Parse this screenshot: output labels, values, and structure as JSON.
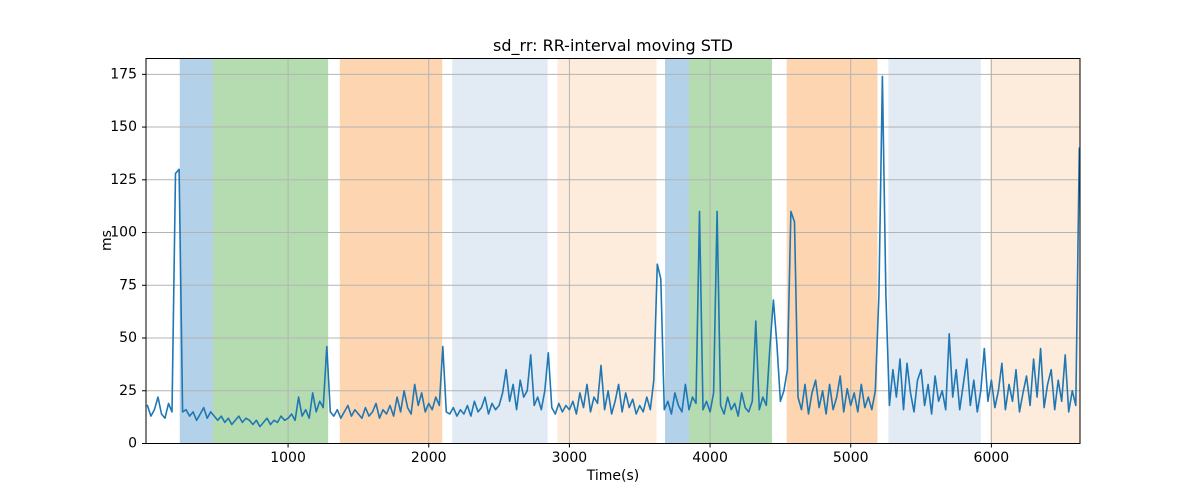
{
  "figure": {
    "title": "sd_rr: RR-interval moving STD",
    "xlabel": "Time(s)",
    "ylabel": "ms"
  },
  "chart_data": {
    "type": "line",
    "title": "sd_rr: RR-interval moving STD",
    "xlabel": "Time(s)",
    "ylabel": "ms",
    "xlim": [
      -10,
      6630
    ],
    "ylim": [
      0,
      182.5
    ],
    "xticks": [
      1000,
      2000,
      3000,
      4000,
      5000,
      6000
    ],
    "yticks": [
      0,
      25,
      50,
      75,
      100,
      125,
      150,
      175
    ],
    "grid": true,
    "legend": "none",
    "line_color": "#1f77b4",
    "grid_color": "#b3b3b3",
    "spine_color": "#000000",
    "bands": [
      {
        "start": 230,
        "end": 466,
        "color": "#b3d1e8",
        "label": "shaded-span-blue"
      },
      {
        "start": 466,
        "end": 1285,
        "color": "#b5dcb0",
        "label": "shaded-span-green"
      },
      {
        "start": 1368,
        "end": 2096,
        "color": "#fdd5b0",
        "label": "shaded-span-orange"
      },
      {
        "start": 2167,
        "end": 2845,
        "color": "#e2eaf3",
        "label": "shaded-span-pale-blue"
      },
      {
        "start": 2915,
        "end": 3620,
        "color": "#fdecdc",
        "label": "shaded-span-pale-orange"
      },
      {
        "start": 3680,
        "end": 3850,
        "color": "#b3d1e8",
        "label": "shaded-span-blue"
      },
      {
        "start": 3850,
        "end": 4440,
        "color": "#b5dcb0",
        "label": "shaded-span-green"
      },
      {
        "start": 4545,
        "end": 5190,
        "color": "#fdd5b0",
        "label": "shaded-span-orange"
      },
      {
        "start": 5268,
        "end": 5925,
        "color": "#e2eaf3",
        "label": "shaded-span-pale-blue"
      },
      {
        "start": 5990,
        "end": 6630,
        "color": "#fdecdc",
        "label": "shaded-span-pale-orange"
      }
    ],
    "series": [
      {
        "name": "sd_rr",
        "t_start": 0,
        "t_step": 25,
        "values": [
          18,
          13,
          16,
          22,
          14,
          12,
          19,
          15,
          128,
          130,
          15,
          16,
          13,
          15,
          11,
          14,
          17,
          12,
          15,
          13,
          11,
          13,
          10,
          12,
          9,
          11,
          13,
          10,
          12,
          11,
          9,
          11,
          8,
          10,
          12,
          9,
          11,
          10,
          13,
          11,
          12,
          14,
          11,
          22,
          13,
          16,
          12,
          24,
          15,
          20,
          17,
          46,
          15,
          13,
          16,
          12,
          15,
          18,
          13,
          16,
          14,
          12,
          17,
          13,
          15,
          19,
          12,
          16,
          14,
          18,
          13,
          22,
          15,
          25,
          17,
          14,
          28,
          18,
          24,
          15,
          19,
          16,
          22,
          18,
          46,
          15,
          14,
          17,
          13,
          16,
          14,
          18,
          13,
          20,
          15,
          17,
          22,
          14,
          19,
          16,
          18,
          24,
          35,
          20,
          28,
          16,
          30,
          22,
          25,
          42,
          18,
          22,
          16,
          25,
          43,
          17,
          14,
          19,
          15,
          18,
          16,
          20,
          14,
          24,
          17,
          28,
          15,
          22,
          19,
          37,
          16,
          25,
          14,
          20,
          28,
          15,
          24,
          17,
          21,
          14,
          18,
          15,
          22,
          16,
          30,
          85,
          78,
          16,
          20,
          14,
          24,
          18,
          15,
          28,
          16,
          22,
          19,
          110,
          16,
          20,
          15,
          24,
          110,
          18,
          14,
          22,
          16,
          19,
          13,
          24,
          17,
          15,
          20,
          58,
          16,
          22,
          18,
          45,
          68,
          47,
          20,
          25,
          35,
          110,
          105,
          22,
          16,
          28,
          14,
          24,
          30,
          17,
          25,
          14,
          28,
          16,
          22,
          32,
          15,
          26,
          18,
          24,
          15,
          28,
          17,
          22,
          16,
          25,
          70,
          174,
          70,
          18,
          35,
          22,
          40,
          16,
          38,
          24,
          15,
          30,
          35,
          18,
          28,
          14,
          32,
          20,
          25,
          16,
          52,
          22,
          35,
          16,
          28,
          40,
          18,
          30,
          15,
          25,
          45,
          20,
          30,
          17,
          25,
          38,
          16,
          28,
          20,
          35,
          15,
          24,
          32,
          18,
          40,
          22,
          45,
          17,
          28,
          35,
          16,
          30,
          20,
          42,
          15,
          25,
          18,
          140
        ]
      }
    ]
  }
}
